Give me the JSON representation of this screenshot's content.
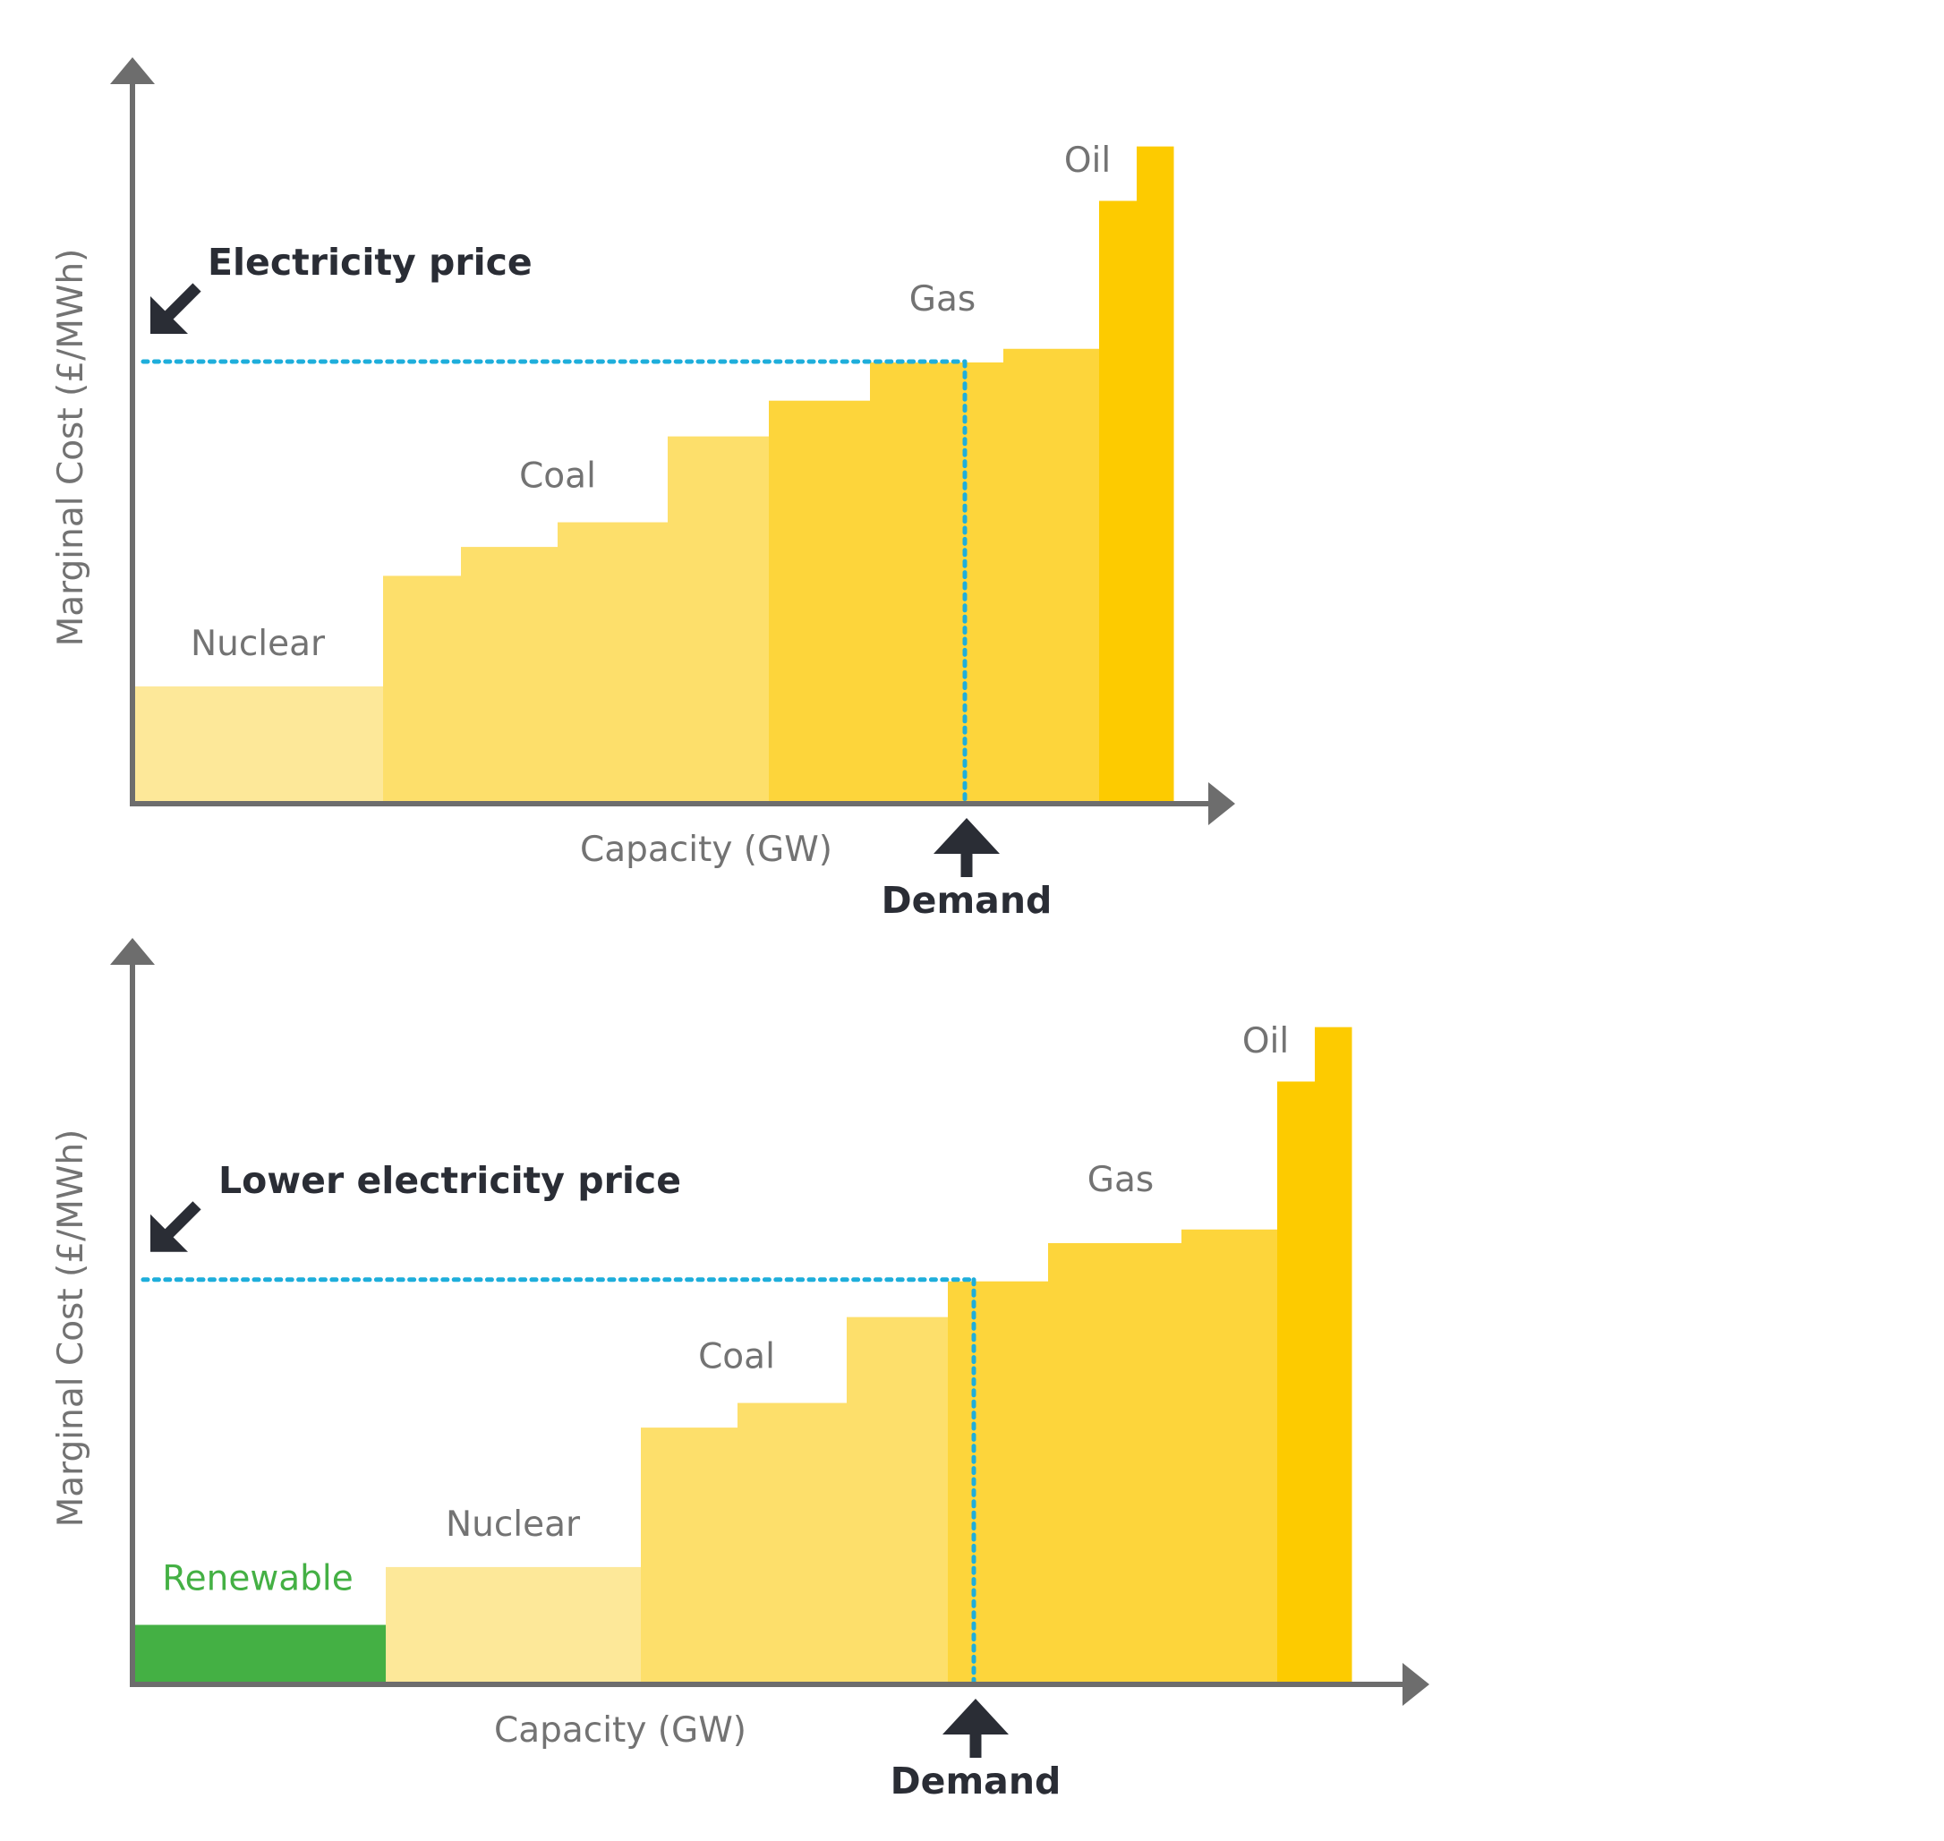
{
  "chart_data": [
    {
      "type": "bar",
      "subtype": "merit-order step chart",
      "xlabel": "Capacity (GW)",
      "ylabel": "Marginal Cost (£/MWh)",
      "price_label": "Electricity price",
      "demand_label": "Demand",
      "demand_x": 930,
      "price_y": 520,
      "xlim": [
        0,
        1200
      ],
      "ylim": [
        0,
        810
      ],
      "segments": [
        {
          "x0": 0,
          "x1": 280,
          "y": 138,
          "fuel": "Nuclear",
          "color": "#fde899"
        },
        {
          "x0": 280,
          "x1": 367,
          "y": 268,
          "fuel": "Coal",
          "color": "#fddf6b"
        },
        {
          "x0": 367,
          "x1": 475,
          "y": 302,
          "fuel": "Coal",
          "color": "#fddf6b"
        },
        {
          "x0": 475,
          "x1": 598,
          "y": 331,
          "fuel": "Coal",
          "color": "#fddf6b"
        },
        {
          "x0": 598,
          "x1": 711,
          "y": 432,
          "fuel": "Coal",
          "color": "#fddf6b"
        },
        {
          "x0": 711,
          "x1": 824,
          "y": 474,
          "fuel": "Gas",
          "color": "#fdd53b"
        },
        {
          "x0": 824,
          "x1": 973,
          "y": 519,
          "fuel": "Gas",
          "color": "#fdd53b"
        },
        {
          "x0": 973,
          "x1": 1080,
          "y": 535,
          "fuel": "Gas",
          "color": "#fdd53b"
        },
        {
          "x0": 1080,
          "x1": 1122,
          "y": 709,
          "fuel": "Oil",
          "color": "#fdcb00"
        },
        {
          "x0": 1122,
          "x1": 1163,
          "y": 773,
          "fuel": "Oil",
          "color": "#fdcb00"
        }
      ],
      "labels": [
        {
          "text": "Nuclear",
          "x": 140,
          "y": 175,
          "color": "#737373"
        },
        {
          "text": "Coal",
          "x": 475,
          "y": 372,
          "color": "#737373"
        },
        {
          "text": "Gas",
          "x": 905,
          "y": 580,
          "color": "#737373"
        },
        {
          "text": "Oil",
          "x": 1067,
          "y": 743,
          "color": "#737373"
        }
      ]
    },
    {
      "type": "bar",
      "subtype": "merit-order step chart",
      "xlabel": "Capacity (GW)",
      "ylabel": "Marginal Cost (£/MWh)",
      "price_label": "Lower electricity price",
      "demand_label": "Demand",
      "demand_x": 940,
      "price_y": 476,
      "xlim": [
        0,
        1440
      ],
      "ylim": [
        0,
        810
      ],
      "segments": [
        {
          "x0": 0,
          "x1": 283,
          "y": 70,
          "fuel": "Renewable",
          "color": "#44b044"
        },
        {
          "x0": 283,
          "x1": 568,
          "y": 138,
          "fuel": "Nuclear",
          "color": "#fde899"
        },
        {
          "x0": 568,
          "x1": 676,
          "y": 302,
          "fuel": "Coal",
          "color": "#fddf6b"
        },
        {
          "x0": 676,
          "x1": 798,
          "y": 331,
          "fuel": "Coal",
          "color": "#fddf6b"
        },
        {
          "x0": 798,
          "x1": 911,
          "y": 432,
          "fuel": "Coal",
          "color": "#fddf6b"
        },
        {
          "x0": 911,
          "x1": 1023,
          "y": 474,
          "fuel": "Gas",
          "color": "#fdd53b"
        },
        {
          "x0": 1023,
          "x1": 1172,
          "y": 519,
          "fuel": "Gas",
          "color": "#fdd53b"
        },
        {
          "x0": 1172,
          "x1": 1279,
          "y": 535,
          "fuel": "Gas",
          "color": "#fdd53b"
        },
        {
          "x0": 1279,
          "x1": 1321,
          "y": 709,
          "fuel": "Oil",
          "color": "#fdcb00"
        },
        {
          "x0": 1321,
          "x1": 1362,
          "y": 773,
          "fuel": "Oil",
          "color": "#fdcb00"
        }
      ],
      "labels": [
        {
          "text": "Renewable",
          "x": 140,
          "y": 111,
          "color": "#44b044"
        },
        {
          "text": "Nuclear",
          "x": 425,
          "y": 175,
          "color": "#737373"
        },
        {
          "text": "Coal",
          "x": 675,
          "y": 372,
          "color": "#737373"
        },
        {
          "text": "Gas",
          "x": 1104,
          "y": 580,
          "color": "#737373"
        },
        {
          "text": "Oil",
          "x": 1266,
          "y": 743,
          "color": "#737373"
        }
      ]
    }
  ],
  "colors": {
    "axis": "#6d6d6d",
    "price_line": "#1eaedb",
    "callout": "#2a2d35"
  }
}
